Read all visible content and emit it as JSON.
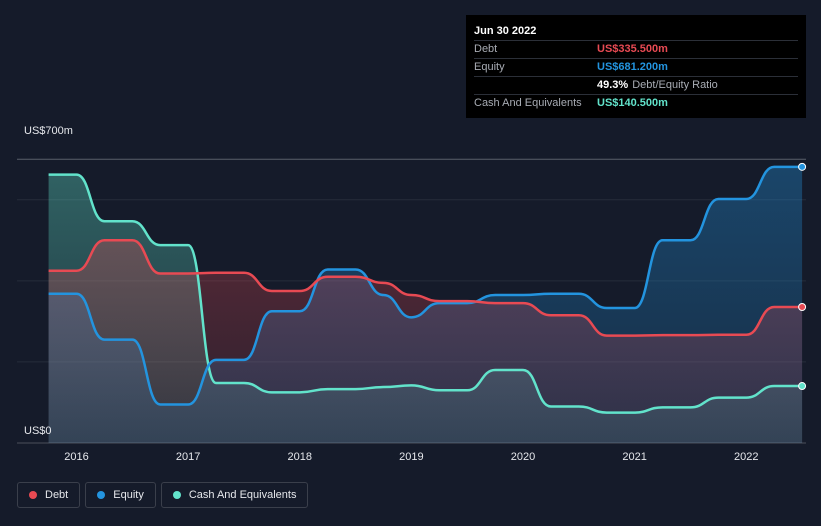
{
  "tooltip": {
    "date": "Jun 30 2022",
    "debt_label": "Debt",
    "debt_value": "US$335.500m",
    "equity_label": "Equity",
    "equity_value": "US$681.200m",
    "ratio_value": "49.3%",
    "ratio_label": "Debt/Equity Ratio",
    "cash_label": "Cash And Equivalents",
    "cash_value": "US$140.500m"
  },
  "legend": {
    "debt": "Debt",
    "equity": "Equity",
    "cash": "Cash And Equivalents"
  },
  "colors": {
    "debt": "#e84a53",
    "equity": "#2394df",
    "cash": "#62e3cb",
    "background": "#151b2a"
  },
  "chart_data": {
    "type": "area",
    "title": "",
    "xlabel": "",
    "ylabel": "",
    "y_top_label": "US$700m",
    "y_bottom_label": "US$0",
    "ylim": [
      0,
      740
    ],
    "x_ticks": [
      "2016",
      "2017",
      "2018",
      "2019",
      "2020",
      "2021",
      "2022"
    ],
    "grid": "horizontal",
    "legend_position": "bottom-left",
    "series": [
      {
        "name": "Debt",
        "x": [
          2015.75,
          2016.0,
          2016.25,
          2016.5,
          2016.75,
          2017.0,
          2017.25,
          2017.5,
          2017.75,
          2018.0,
          2018.25,
          2018.5,
          2018.75,
          2019.0,
          2019.25,
          2019.5,
          2019.75,
          2020.0,
          2020.25,
          2020.5,
          2020.75,
          2021.0,
          2021.25,
          2021.5,
          2021.75,
          2022.0,
          2022.25,
          2022.5
        ],
        "y": [
          425,
          425,
          500,
          500,
          418,
          418,
          420,
          420,
          375,
          375,
          410,
          410,
          395,
          365,
          350,
          350,
          345,
          345,
          315,
          315,
          265,
          265,
          266,
          266,
          267,
          267,
          335.5,
          335.5
        ]
      },
      {
        "name": "Equity",
        "x": [
          2015.75,
          2016.0,
          2016.25,
          2016.5,
          2016.75,
          2017.0,
          2017.25,
          2017.5,
          2017.75,
          2018.0,
          2018.25,
          2018.5,
          2018.75,
          2019.0,
          2019.25,
          2019.5,
          2019.75,
          2020.0,
          2020.25,
          2020.5,
          2020.75,
          2021.0,
          2021.25,
          2021.5,
          2021.75,
          2022.0,
          2022.25,
          2022.5
        ],
        "y": [
          368,
          368,
          255,
          255,
          95,
          95,
          205,
          205,
          325,
          325,
          428,
          428,
          365,
          310,
          345,
          345,
          365,
          365,
          368,
          368,
          333,
          333,
          500,
          500,
          602,
          602,
          681.2,
          681.2
        ]
      },
      {
        "name": "Cash And Equivalents",
        "x": [
          2015.75,
          2016.0,
          2016.25,
          2016.5,
          2016.75,
          2017.0,
          2017.25,
          2017.5,
          2017.75,
          2018.0,
          2018.25,
          2018.5,
          2018.75,
          2019.0,
          2019.25,
          2019.5,
          2019.75,
          2020.0,
          2020.25,
          2020.5,
          2020.75,
          2021.0,
          2021.25,
          2021.5,
          2021.75,
          2022.0,
          2022.25,
          2022.5
        ],
        "y": [
          662,
          662,
          547,
          547,
          488,
          488,
          148,
          148,
          125,
          125,
          133,
          133,
          138,
          142,
          130,
          130,
          180,
          180,
          90,
          90,
          75,
          75,
          88,
          88,
          112,
          112,
          140.5,
          140.5
        ]
      }
    ]
  }
}
